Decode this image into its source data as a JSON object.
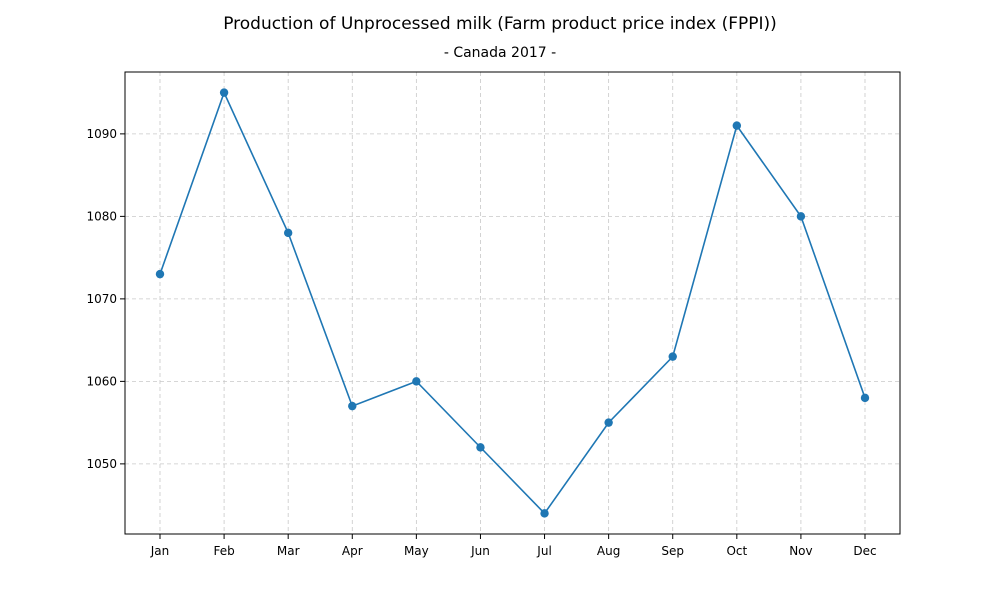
{
  "chart_data": {
    "type": "line",
    "title": "Production of Unprocessed milk (Farm product price index (FPPI))",
    "subtitle": "- Canada 2017 -",
    "xlabel": "",
    "ylabel": "",
    "categories": [
      "Jan",
      "Feb",
      "Mar",
      "Apr",
      "May",
      "Jun",
      "Jul",
      "Aug",
      "Sep",
      "Oct",
      "Nov",
      "Dec"
    ],
    "series": [
      {
        "values": [
          1073,
          1095,
          1078,
          1057,
          1060,
          1052,
          1044,
          1055,
          1063,
          1091,
          1080,
          1058
        ],
        "color": "#1f77b4",
        "marker": "circle"
      }
    ],
    "ylim": [
      1041.5,
      1097.5
    ],
    "yticks": [
      1050,
      1060,
      1070,
      1080,
      1090
    ],
    "grid": true,
    "legend": "none"
  }
}
